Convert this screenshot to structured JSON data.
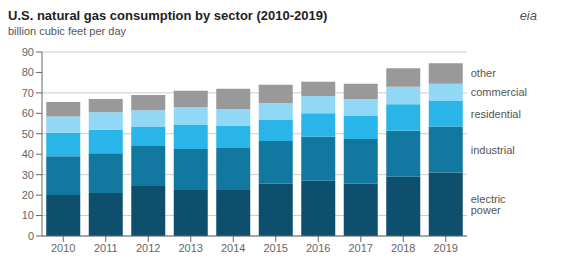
{
  "chart_data": {
    "type": "bar",
    "title": "U.S. natural gas consumption by sector (2010-2019)",
    "subtitle": "billion cubic feet per day",
    "annotations": [
      "eia"
    ],
    "categories": [
      2010,
      2011,
      2012,
      2013,
      2014,
      2015,
      2016,
      2017,
      2018,
      2019
    ],
    "series": [
      {
        "name": "electric\npower",
        "color": "#0d4f6c",
        "values": [
          20.0,
          21.0,
          24.5,
          22.5,
          22.5,
          25.5,
          27.0,
          25.5,
          29.0,
          31.0
        ]
      },
      {
        "name": "industrial",
        "color": "#1278a0",
        "values": [
          19.0,
          19.5,
          19.5,
          20.0,
          20.5,
          21.0,
          21.5,
          22.0,
          22.5,
          22.5
        ]
      },
      {
        "name": "residential",
        "color": "#29b5e8",
        "values": [
          11.5,
          11.5,
          9.5,
          12.0,
          11.0,
          10.5,
          11.5,
          11.5,
          13.0,
          12.5
        ]
      },
      {
        "name": "commercial",
        "color": "#90d8f5",
        "values": [
          8.0,
          8.5,
          8.0,
          8.5,
          8.0,
          8.0,
          8.5,
          8.0,
          8.5,
          8.5
        ]
      },
      {
        "name": "other",
        "color": "#999999",
        "values": [
          7.0,
          6.5,
          7.5,
          8.0,
          10.0,
          9.0,
          7.0,
          7.5,
          9.0,
          10.0
        ]
      }
    ],
    "stacked": true,
    "ylim": [
      0,
      90
    ],
    "yticks": [
      0,
      10,
      20,
      30,
      40,
      50,
      60,
      70,
      80,
      90
    ],
    "grid": true
  }
}
